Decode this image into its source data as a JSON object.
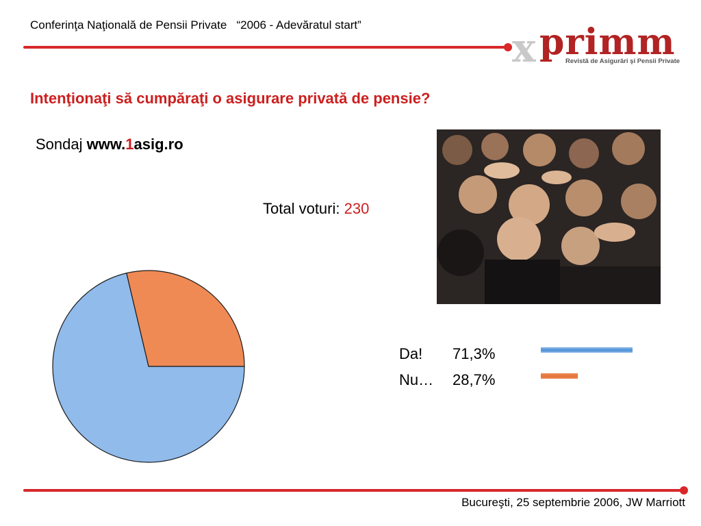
{
  "header": {
    "conference": "Conferinţa Naţională de Pensii Private",
    "motto": "“2006 - Adevăratul start”"
  },
  "logo": {
    "mark": "x",
    "word": "primm",
    "tagline": "Revistă de Asigurări şi Pensii Private"
  },
  "question": "Intenţionaţi să cumpăraţi o asigurare privată de pensie?",
  "poll": {
    "prefix": "Sondaj",
    "site_www": "www.",
    "site_one": "1",
    "site_rest": "asig.ro"
  },
  "total": {
    "label": "Total voturi:",
    "value": "230"
  },
  "colors": {
    "accent_red": "#d8282a",
    "da": "#90bbeb",
    "nu": "#ef8a55"
  },
  "chart_data": {
    "type": "pie",
    "series": [
      {
        "name": "Da!",
        "display": "71,3%",
        "value": 71.3,
        "color": "#90bbeb"
      },
      {
        "name": "Nu…",
        "display": "28,7%",
        "value": 28.7,
        "color": "#ef8a55"
      }
    ],
    "legend_position": "right"
  },
  "footer": {
    "location": "Bucureşti, 25 septembrie 2006, JW Marriott"
  }
}
